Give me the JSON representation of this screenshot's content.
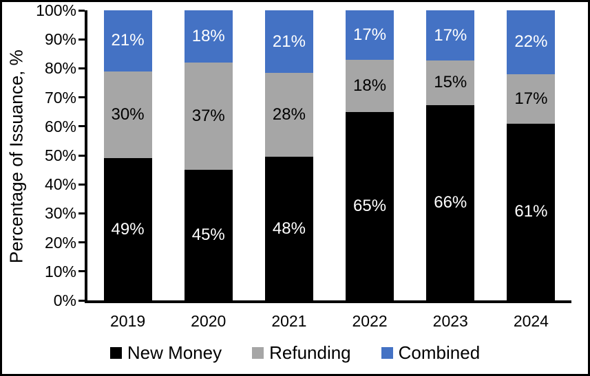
{
  "figure": {
    "background": "#ffffff",
    "border_color": "#000000"
  },
  "chart_data": {
    "type": "bar",
    "stacked": true,
    "title": "",
    "xlabel": "",
    "ylabel": "Percentage of Issuance, %",
    "categories": [
      "2019",
      "2020",
      "2021",
      "2022",
      "2023",
      "2024"
    ],
    "series": [
      {
        "name": "New Money",
        "color": "#000000",
        "label_color": "#ffffff",
        "values": [
          49,
          45,
          48,
          65,
          66,
          61
        ],
        "labels": [
          "49%",
          "45%",
          "48%",
          "65%",
          "66%",
          "61%"
        ]
      },
      {
        "name": "Refunding",
        "color": "#A6A6A6",
        "label_color": "#000000",
        "values": [
          30,
          37,
          28,
          18,
          15,
          17
        ],
        "labels": [
          "30%",
          "37%",
          "28%",
          "18%",
          "15%",
          "17%"
        ]
      },
      {
        "name": "Combined",
        "color": "#4472C4",
        "label_color": "#ffffff",
        "values": [
          21,
          18,
          21,
          17,
          17,
          22
        ],
        "labels": [
          "21%",
          "18%",
          "21%",
          "17%",
          "17%",
          "22%"
        ]
      }
    ],
    "y_axis": {
      "min": 0,
      "max": 100,
      "tick_step": 10,
      "tick_labels": [
        "0%",
        "10%",
        "20%",
        "30%",
        "40%",
        "50%",
        "60%",
        "70%",
        "80%",
        "90%",
        "100%"
      ]
    },
    "legend": {
      "position": "bottom",
      "entries": [
        "New Money",
        "Refunding",
        "Combined"
      ]
    },
    "grid": false
  }
}
